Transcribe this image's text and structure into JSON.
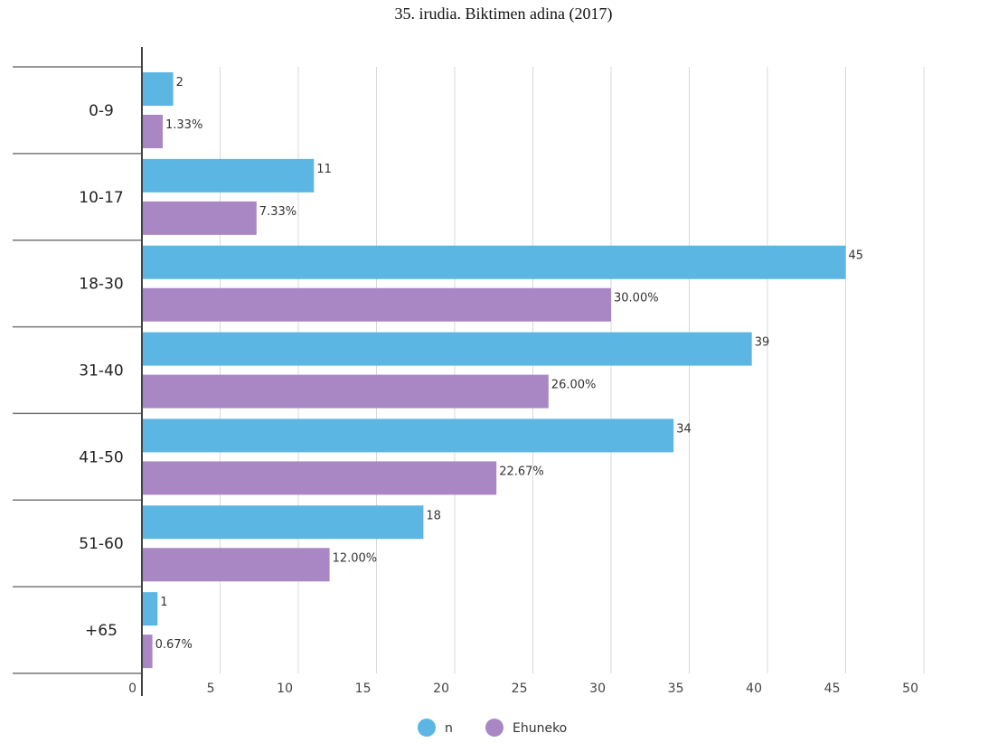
{
  "chart_data": {
    "type": "bar",
    "orientation": "horizontal",
    "title": "35. irudia. Biktimen adina (2017)",
    "categories": [
      "0-9",
      "10-17",
      "18-30",
      "31-40",
      "41-50",
      "51-60",
      "+65"
    ],
    "series": [
      {
        "name": "n",
        "color": "#5bb6e4",
        "values": [
          2,
          11,
          45,
          39,
          34,
          18,
          1
        ],
        "labels": [
          "2",
          "11",
          "45",
          "39",
          "34",
          "18",
          "1"
        ]
      },
      {
        "name": "Ehuneko",
        "color": "#a987c4",
        "values": [
          1.33,
          7.33,
          30.0,
          26.0,
          22.67,
          12.0,
          0.67
        ],
        "labels": [
          "1.33%",
          "7.33%",
          "30.00%",
          "26.00%",
          "22.67%",
          "12.00%",
          "0.67%"
        ]
      }
    ],
    "xlim": [
      0,
      50
    ],
    "xticks": [
      0,
      5,
      10,
      15,
      20,
      25,
      30,
      35,
      40,
      45,
      50
    ],
    "grid": true,
    "legend": "bottom-center"
  }
}
